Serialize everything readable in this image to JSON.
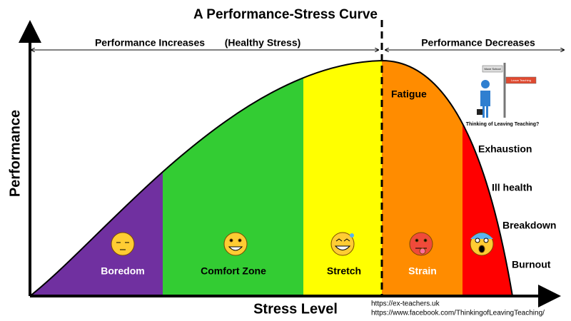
{
  "title": "A Performance-Stress Curve",
  "phases": {
    "increase": "Performance Increases",
    "increase_note": "(Healthy Stress)",
    "decrease": "Performance Decreases"
  },
  "axes": {
    "y_label": "Performance",
    "x_label": "Stress Level"
  },
  "zones": [
    "Boredom",
    "Comfort Zone",
    "Stretch",
    "Strain"
  ],
  "curve_labels": [
    "Fatigue",
    "Exhaustion",
    "Ill health",
    "Breakdown",
    "Burnout"
  ],
  "sign": {
    "caption": "Thinking of Leaving Teaching?",
    "arrows": [
      "Move School",
      "Leave Teaching"
    ]
  },
  "links": [
    "https://ex-teachers.uk",
    "https://www.facebook.com/ThinkingofLeavingTeaching/"
  ]
}
